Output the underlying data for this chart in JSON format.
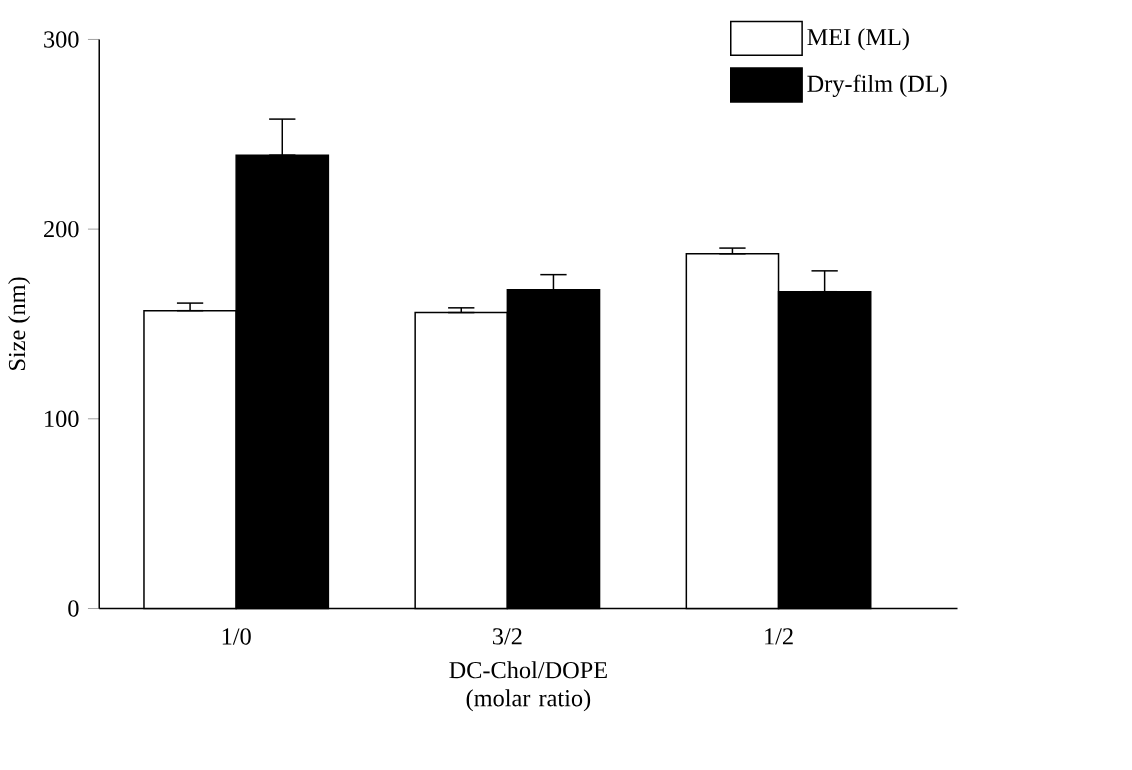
{
  "chart_data": {
    "type": "bar",
    "xlabel": "DC-Chol/DOPE\n(molar ratio)",
    "ylabel": "Size (nm)",
    "categories": [
      "1/0",
      "3/2",
      "1/2"
    ],
    "series": [
      {
        "name": "MEI (ML)",
        "color": "#ffffff",
        "values": [
          157,
          156,
          187
        ],
        "errors": [
          [
            157,
            161
          ],
          [
            156,
            158.5
          ],
          [
            187,
            190
          ]
        ]
      },
      {
        "name": "Dry-film (DL)",
        "color": "#000000",
        "values": [
          239,
          168,
          167
        ],
        "errors": [
          [
            239,
            258
          ],
          [
            168,
            176
          ],
          [
            167,
            178
          ]
        ]
      }
    ],
    "ylim": [
      0,
      300
    ],
    "yticks": [
      0,
      100,
      200,
      300
    ],
    "grid": false,
    "legend": "top right"
  }
}
